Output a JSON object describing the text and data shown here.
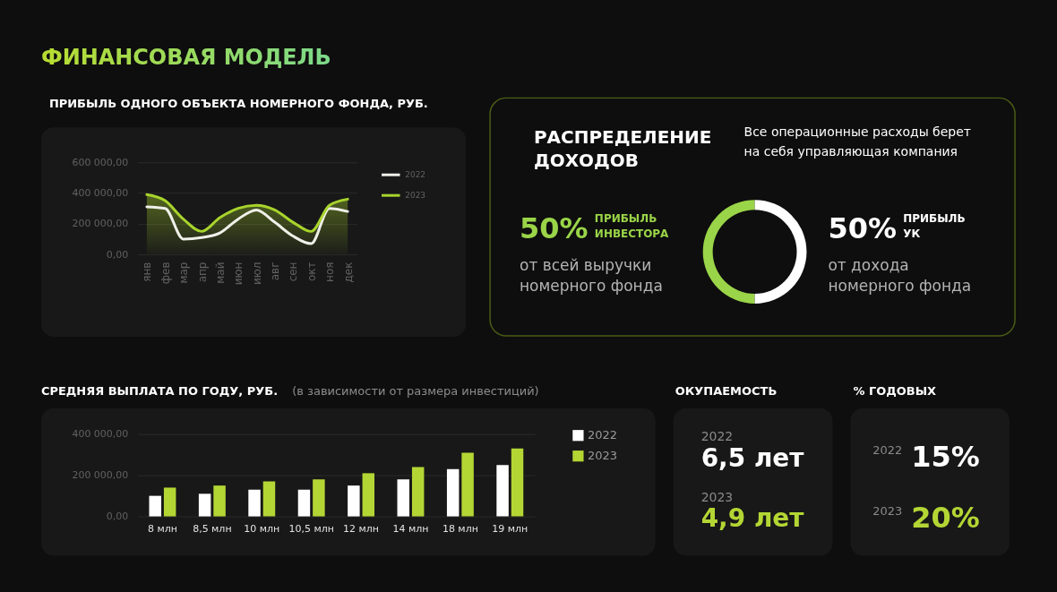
{
  "chart_data": [
    {
      "type": "other",
      "title": "ФИНАНСОВАЯ МОДЕЛЬ"
    },
    {
      "type": "line",
      "title": "ПРИБЫЛЬ ОДНОГО ОБЪЕКТА НОМЕРНОГО ФОНДА, РУБ.",
      "categories": [
        "янв",
        "фев",
        "мар",
        "апр",
        "май",
        "июн",
        "июл",
        "авг",
        "сен",
        "окт",
        "ноя",
        "дек"
      ],
      "series": [
        {
          "name": "2022",
          "type": "line",
          "color": "#f0f0ea",
          "values": [
            310000,
            300000,
            100000,
            110000,
            140000,
            230000,
            290000,
            210000,
            120000,
            70000,
            300000,
            280000
          ]
        },
        {
          "name": "2023",
          "type": "area",
          "color": "#a8d42c",
          "values": [
            390000,
            350000,
            230000,
            150000,
            240000,
            300000,
            320000,
            290000,
            210000,
            150000,
            320000,
            360000
          ]
        }
      ],
      "ylim": [
        0,
        600000
      ],
      "yticks": [
        {
          "value": 0,
          "label": "0,00"
        },
        {
          "value": 200000,
          "label": "200 000,00"
        },
        {
          "value": 400000,
          "label": "400 000,00"
        },
        {
          "value": 600000,
          "label": "600 000,00"
        }
      ],
      "grid": "y",
      "legend": "top right"
    },
    {
      "type": "donut",
      "title": "РАСПРЕДЕЛЕНИЕ ДОХОДОВ",
      "categories": [
        "ПРИБЫЛЬ ИНВЕСТОРА",
        "ПРИБЫЛЬ УК"
      ],
      "values": [
        50,
        50
      ],
      "colors": [
        "#9ad448",
        "#ffffff"
      ],
      "value_labels": [
        "50%",
        "50%"
      ],
      "annotations": [
        "Все операционные расходы берет на себя управляющая компания",
        "от всей выручки номерного фонда",
        "от дохода номерного фонда"
      ]
    },
    {
      "type": "bar",
      "title": "СРЕДНЯЯ ВЫПЛАТА ПО ГОДУ, РУБ.",
      "subtitle": "(в зависимости от размера инвестиций)",
      "categories": [
        "8 млн",
        "8,5 млн",
        "10 млн",
        "10,5 млн",
        "12 млн",
        "14 млн",
        "18 млн",
        "19 млн"
      ],
      "series": [
        {
          "name": "2022",
          "color": "#ffffff",
          "values": [
            100000,
            110000,
            130000,
            130000,
            150000,
            180000,
            230000,
            250000
          ]
        },
        {
          "name": "2023",
          "color": "#b4d634",
          "values": [
            140000,
            150000,
            170000,
            180000,
            210000,
            240000,
            310000,
            330000
          ]
        }
      ],
      "ylim": [
        0,
        400000
      ],
      "yticks": [
        {
          "value": 0,
          "label": "0,00"
        },
        {
          "value": 200000,
          "label": "200 000,00"
        },
        {
          "value": 400000,
          "label": "400 000,00"
        }
      ],
      "grid": "y",
      "legend": "top right"
    },
    {
      "type": "other",
      "title": "ОКУПАЕМОСТЬ",
      "categories": [
        "2022",
        "2023"
      ],
      "value_labels": [
        "6,5 лет",
        "4,9 лет"
      ]
    },
    {
      "type": "other",
      "title": "% ГОДОВЫХ",
      "categories": [
        "2022",
        "2023"
      ],
      "value_labels": [
        "15%",
        "20%"
      ]
    }
  ]
}
